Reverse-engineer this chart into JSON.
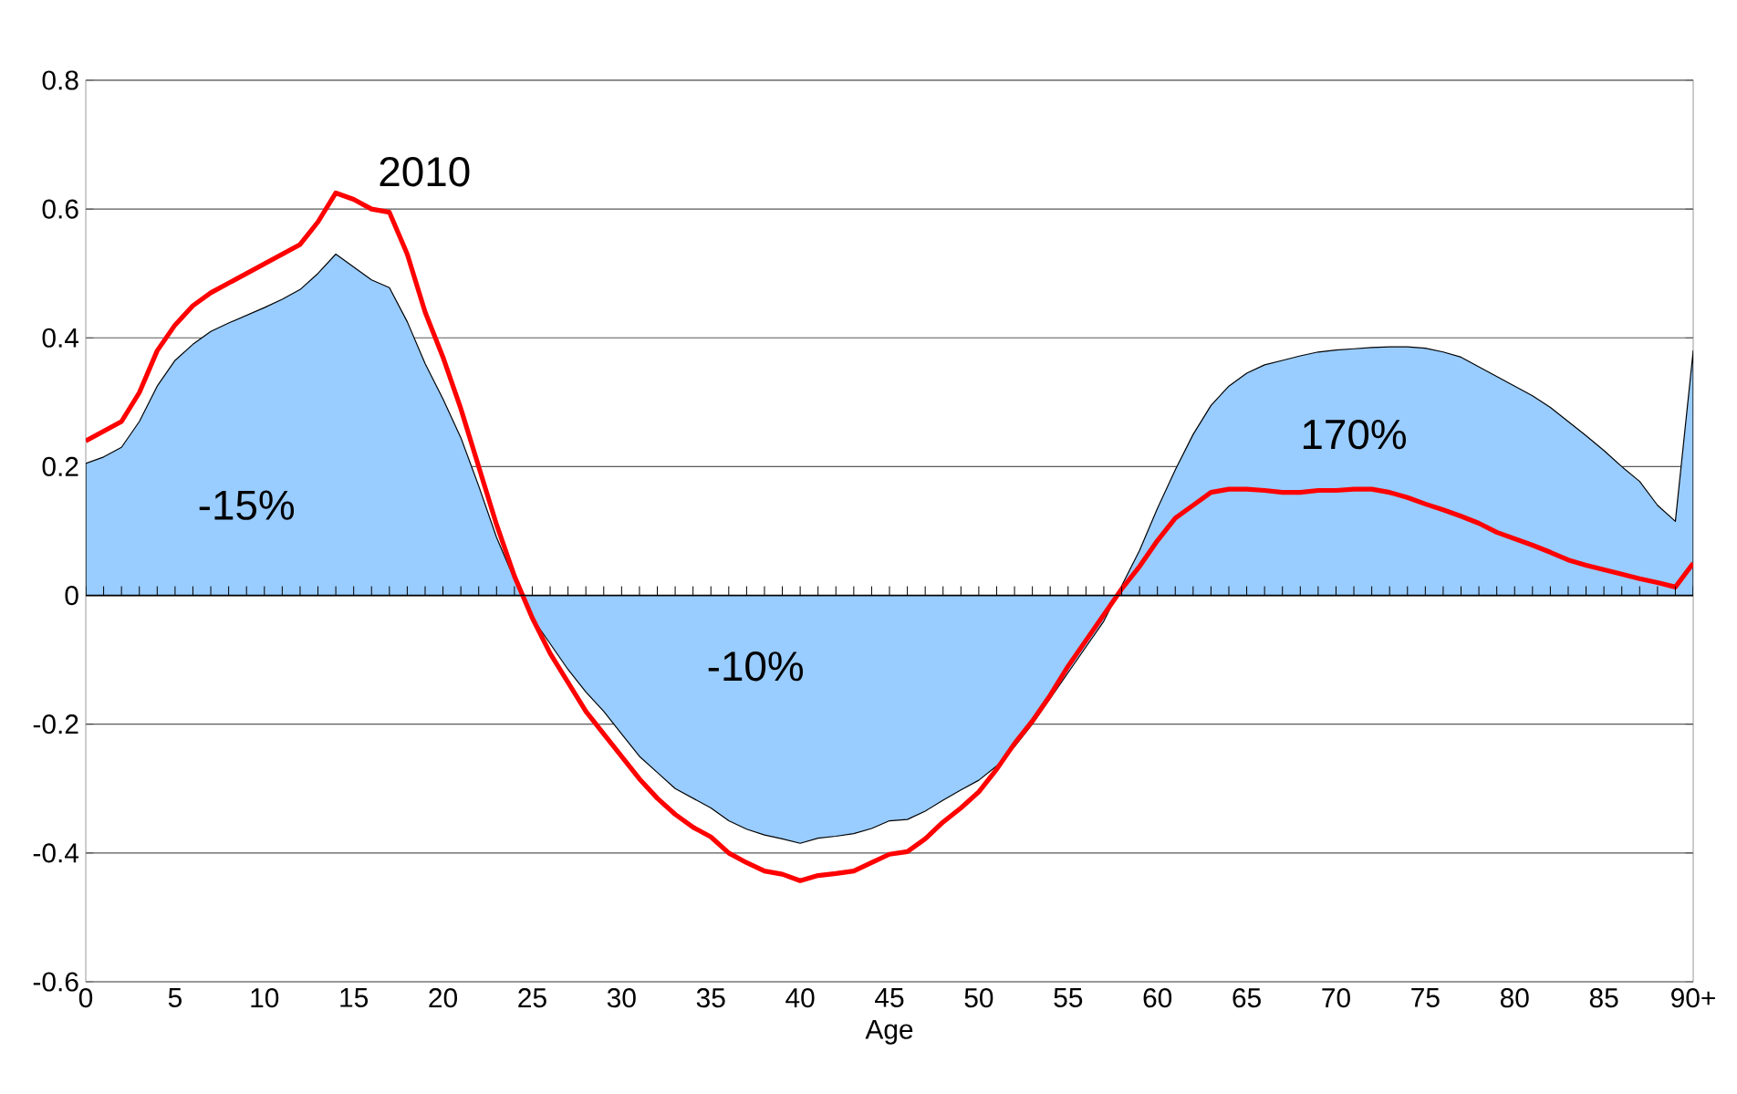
{
  "chart_data": {
    "type": "line",
    "xlabel": "Age",
    "categories": [
      "0",
      null,
      null,
      null,
      null,
      "5",
      null,
      null,
      null,
      null,
      "10",
      null,
      null,
      null,
      null,
      "15",
      null,
      null,
      null,
      null,
      "20",
      null,
      null,
      null,
      null,
      "25",
      null,
      null,
      null,
      null,
      "30",
      null,
      null,
      null,
      null,
      "35",
      null,
      null,
      null,
      null,
      "40",
      null,
      null,
      null,
      null,
      "45",
      null,
      null,
      null,
      null,
      "50",
      null,
      null,
      null,
      null,
      "55",
      null,
      null,
      null,
      null,
      "60",
      null,
      null,
      null,
      null,
      "65",
      null,
      null,
      null,
      null,
      "70",
      null,
      null,
      null,
      null,
      "75",
      null,
      null,
      null,
      null,
      "80",
      null,
      null,
      null,
      null,
      "85",
      null,
      null,
      null,
      null,
      "90+"
    ],
    "series": [
      {
        "type": "area",
        "color": "#99ccff",
        "values": [
          0.205,
          0.215,
          0.23,
          0.27,
          0.325,
          0.365,
          0.39,
          0.41,
          0.423,
          0.435,
          0.447,
          0.46,
          0.475,
          0.5,
          0.53,
          0.51,
          0.49,
          0.478,
          0.425,
          0.36,
          0.305,
          0.245,
          0.17,
          0.09,
          0.025,
          -0.035,
          -0.075,
          -0.115,
          -0.15,
          -0.18,
          -0.215,
          -0.25,
          -0.275,
          -0.3,
          -0.315,
          -0.33,
          -0.35,
          -0.363,
          -0.372,
          -0.378,
          -0.385,
          -0.377,
          -0.374,
          -0.37,
          -0.362,
          -0.35,
          -0.348,
          -0.335,
          -0.318,
          -0.302,
          -0.287,
          -0.265,
          -0.235,
          -0.2,
          -0.16,
          -0.12,
          -0.08,
          -0.04,
          0.015,
          0.07,
          0.135,
          0.195,
          0.25,
          0.295,
          0.325,
          0.345,
          0.358,
          0.365,
          0.372,
          0.378,
          0.381,
          0.383,
          0.385,
          0.386,
          0.386,
          0.384,
          0.378,
          0.37,
          0.355,
          0.34,
          0.325,
          0.31,
          0.292,
          0.27,
          0.248,
          0.225,
          0.2,
          0.177,
          0.14,
          0.115,
          0.38
        ]
      },
      {
        "name": "2010",
        "color": "#ff0000",
        "values": [
          0.24,
          0.255,
          0.27,
          0.315,
          0.38,
          0.42,
          0.45,
          0.47,
          0.485,
          0.5,
          0.515,
          0.53,
          0.545,
          0.58,
          0.625,
          0.615,
          0.6,
          0.595,
          0.53,
          0.44,
          0.37,
          0.29,
          0.2,
          0.11,
          0.03,
          -0.035,
          -0.09,
          -0.135,
          -0.18,
          -0.215,
          -0.25,
          -0.285,
          -0.315,
          -0.34,
          -0.36,
          -0.375,
          -0.4,
          -0.415,
          -0.428,
          -0.433,
          -0.443,
          -0.435,
          -0.432,
          -0.428,
          -0.415,
          -0.402,
          -0.398,
          -0.378,
          -0.352,
          -0.33,
          -0.305,
          -0.27,
          -0.23,
          -0.195,
          -0.155,
          -0.11,
          -0.07,
          -0.03,
          0.01,
          0.045,
          0.085,
          0.12,
          0.14,
          0.16,
          0.165,
          0.165,
          0.163,
          0.16,
          0.16,
          0.163,
          0.163,
          0.165,
          0.165,
          0.16,
          0.152,
          0.142,
          0.133,
          0.123,
          0.112,
          0.098,
          0.088,
          0.078,
          0.067,
          0.055,
          0.047,
          0.04,
          0.033,
          0.026,
          0.02,
          0.013,
          0.05
        ]
      }
    ],
    "annotations": [
      "-15%",
      "-10%",
      "170%"
    ],
    "ylim": [
      -0.6,
      0.8
    ],
    "yticks": [
      -0.6,
      -0.4,
      -0.2,
      0,
      0.2,
      0.4,
      0.6,
      0.8
    ],
    "grid": "y"
  }
}
